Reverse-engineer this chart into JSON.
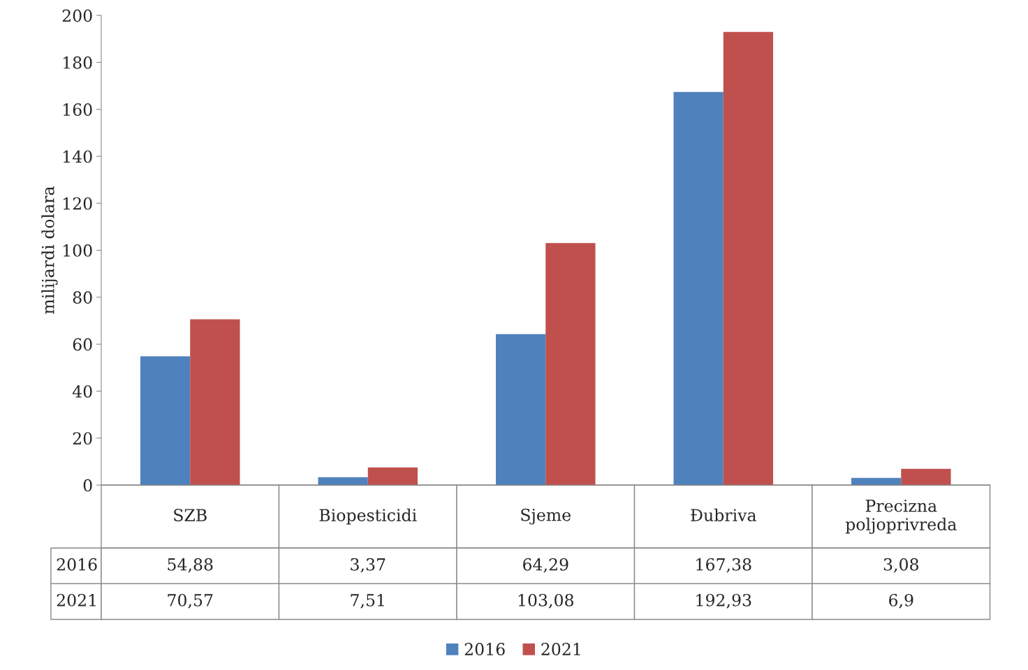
{
  "chart_data": {
    "type": "bar",
    "ylabel": "milijardi dolara",
    "categories": [
      "SZB",
      "Biopesticidi",
      "Sjeme",
      "Đubriva",
      "Precizna poljoprivreda"
    ],
    "series": [
      {
        "name": "2016",
        "color": "#4f81bd",
        "values": [
          54.88,
          3.37,
          64.29,
          167.38,
          3.08
        ],
        "value_labels": [
          "54,88",
          "3,37",
          "64,29",
          "167,38",
          "3,08"
        ]
      },
      {
        "name": "2021",
        "color": "#c0504d",
        "values": [
          70.57,
          7.51,
          103.08,
          192.93,
          6.9
        ],
        "value_labels": [
          "70,57",
          "7,51",
          "103,08",
          "192,93",
          "6,9"
        ]
      }
    ],
    "ylim": [
      0,
      200
    ],
    "yticks": [
      0,
      20,
      40,
      60,
      80,
      100,
      120,
      140,
      160,
      180,
      200
    ],
    "grid": false,
    "legend": "bottom"
  }
}
